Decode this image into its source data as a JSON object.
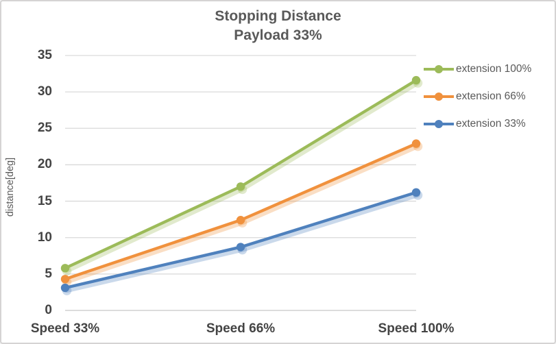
{
  "title": {
    "line1": "Stopping Distance",
    "line2": "Payload 33%"
  },
  "y_axis": {
    "label": "distance[deg]",
    "ticks": [
      0,
      5,
      10,
      15,
      20,
      25,
      30,
      35
    ]
  },
  "x_axis": {
    "categories": [
      "Speed 33%",
      "Speed 66%",
      "Speed 100%"
    ]
  },
  "chart_data": {
    "type": "line",
    "title": "Stopping Distance Payload 33%",
    "xlabel": "",
    "ylabel": "distance[deg]",
    "ylim": [
      0,
      35
    ],
    "grid": true,
    "legend_position": "right",
    "categories": [
      "Speed 33%",
      "Speed 66%",
      "Speed 100%"
    ],
    "series": [
      {
        "name": "extension 100%",
        "color": "#9CBB59",
        "values": [
          5.8,
          17.0,
          31.6
        ]
      },
      {
        "name": "extension 66%",
        "color": "#F0913D",
        "values": [
          4.3,
          12.4,
          22.9
        ]
      },
      {
        "name": "extension 33%",
        "color": "#4F81BD",
        "values": [
          3.1,
          8.7,
          16.2
        ]
      }
    ]
  },
  "colors": {
    "grid": "#d9d9d9",
    "axis_line": "#c6c6c6",
    "title_text": "#595959",
    "tick_text": "#444444",
    "legend_text": "#595959"
  }
}
